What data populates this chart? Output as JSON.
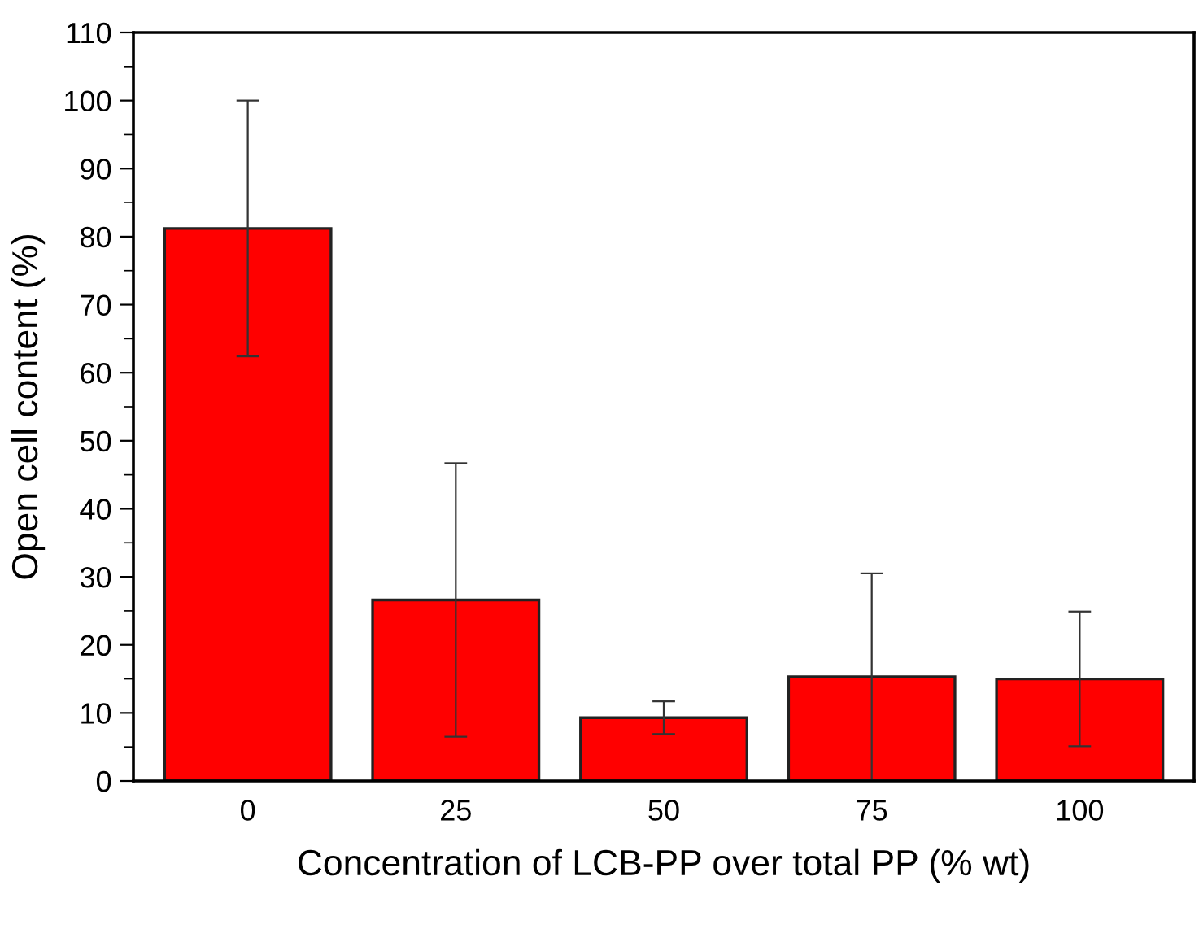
{
  "chart_data": {
    "type": "bar",
    "xlabel": "Concentration of LCB-PP over total PP (% wt)",
    "ylabel": "Open cell content (%)",
    "categories": [
      "0",
      "25",
      "50",
      "75",
      "100"
    ],
    "values": [
      81.2,
      26.6,
      9.3,
      15.3,
      15.0
    ],
    "errors": [
      18.8,
      20.1,
      2.4,
      15.2,
      9.9
    ],
    "color": "#ff0000",
    "ylim": [
      0,
      110
    ],
    "yticks": [
      0,
      10,
      20,
      30,
      40,
      50,
      60,
      70,
      80,
      90,
      100,
      110
    ],
    "grid": false
  }
}
